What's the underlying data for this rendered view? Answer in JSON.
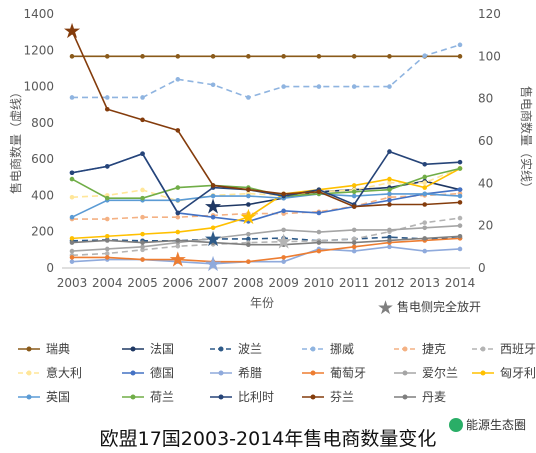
{
  "caption": "欧盟17国2003-2014年售电商数量变化",
  "watermark": "能源生态圈",
  "chart_data": {
    "type": "line",
    "x": [
      2003,
      2004,
      2005,
      2006,
      2007,
      2008,
      2009,
      2010,
      2011,
      2012,
      2013,
      2014
    ],
    "xlabel": "年份",
    "ylabel_left": "售电商数量（虚线）",
    "ylabel_right": "售电商数量（实线）",
    "ylim_left": [
      0,
      1400
    ],
    "yticks_left": [
      0,
      200,
      400,
      600,
      800,
      1000,
      1200,
      1400
    ],
    "ylim_right": [
      0,
      120
    ],
    "yticks_right": [
      0,
      20,
      40,
      60,
      80,
      100,
      120
    ],
    "grid": false,
    "legend_position": "bottom",
    "full_opening_label": "售电侧完全放开",
    "series": [
      {
        "name": "瑞典",
        "axis": "right",
        "dash": false,
        "color": "#8a5a1a",
        "values": [
          100,
          100,
          100,
          100,
          100,
          100,
          100,
          100,
          100,
          100,
          100,
          100
        ],
        "star_year": null
      },
      {
        "name": "法国",
        "axis": "right",
        "dash": false,
        "color": "#1f3864",
        "values": [
          null,
          null,
          null,
          null,
          29,
          30,
          33,
          36,
          37,
          38,
          41,
          37
        ],
        "star_year": 2007
      },
      {
        "name": "波兰",
        "axis": "left",
        "dash": true,
        "color": "#2e5a88",
        "values": [
          150,
          155,
          150,
          150,
          160,
          160,
          165,
          150,
          160,
          170,
          160,
          165
        ],
        "star_year": 2007
      },
      {
        "name": "挪威",
        "axis": "left",
        "dash": true,
        "color": "#8fb4e0",
        "values": [
          940,
          940,
          940,
          1040,
          1010,
          940,
          1000,
          1000,
          1000,
          1000,
          1170,
          1230
        ],
        "star_year": null
      },
      {
        "name": "捷克",
        "axis": "left",
        "dash": true,
        "color": "#f4b183",
        "values": [
          270,
          270,
          280,
          280,
          290,
          300,
          300,
          310,
          340,
          390,
          400,
          410
        ],
        "star_year": null
      },
      {
        "name": "西班牙",
        "axis": "left",
        "dash": true,
        "color": "#b4b4b4",
        "values": [
          70,
          80,
          100,
          120,
          130,
          140,
          145,
          150,
          160,
          200,
          250,
          275
        ],
        "star_year": 2009
      },
      {
        "name": "意大利",
        "axis": "left",
        "dash": true,
        "color": "#ffe699",
        "values": [
          390,
          400,
          430,
          370,
          400,
          410,
          400,
          420,
          430,
          470,
          470,
          550
        ],
        "star_year": null
      },
      {
        "name": "德国",
        "axis": "right",
        "dash": false,
        "color": "#4472c4",
        "values": [
          45,
          48,
          54,
          26,
          24,
          22,
          27,
          26,
          29,
          32,
          35,
          37
        ],
        "star_year": null
      },
      {
        "name": "希腊",
        "axis": "right",
        "dash": false,
        "color": "#8faadc",
        "values": [
          3,
          4,
          4,
          3,
          2,
          3,
          3,
          9,
          8,
          10,
          8,
          9
        ],
        "star_year": 2007
      },
      {
        "name": "葡萄牙",
        "axis": "right",
        "dash": false,
        "color": "#ed7d31",
        "values": [
          5,
          5,
          4,
          4,
          3,
          3,
          5,
          8,
          10,
          12,
          13,
          14
        ],
        "star_year": 2006
      },
      {
        "name": "爱尔兰",
        "axis": "right",
        "dash": false,
        "color": "#a5a5a5",
        "values": [
          8,
          9,
          10,
          12,
          14,
          16,
          18,
          17,
          18,
          18,
          19,
          20
        ],
        "star_year": null
      },
      {
        "name": "匈牙利",
        "axis": "right",
        "dash": false,
        "color": "#ffc000",
        "values": [
          14,
          15,
          16,
          17,
          19,
          24,
          35,
          37,
          39,
          42,
          38,
          47
        ],
        "star_year": 2008
      },
      {
        "name": "英国",
        "axis": "right",
        "dash": false,
        "color": "#5b9bd5",
        "values": [
          24,
          32,
          32,
          32,
          34,
          34,
          33,
          35,
          34,
          35,
          35,
          34
        ],
        "star_year": null
      },
      {
        "name": "荷兰",
        "axis": "right",
        "dash": false,
        "color": "#70ad47",
        "values": [
          42,
          33,
          33,
          38,
          39,
          38,
          34,
          35,
          36,
          37,
          43,
          47
        ],
        "star_year": null
      },
      {
        "name": "比利时",
        "axis": "right",
        "dash": false,
        "color": "#264478",
        "values": [
          45,
          48,
          54,
          26,
          38,
          37,
          34,
          37,
          30,
          55,
          49,
          50
        ],
        "star_year": null
      },
      {
        "name": "芬兰",
        "axis": "right",
        "dash": false,
        "color": "#843c0c",
        "values": [
          112,
          75,
          70,
          65,
          39,
          37,
          35,
          36,
          29,
          30,
          30,
          31
        ],
        "star_year": 2003
      },
      {
        "name": "丹麦",
        "axis": "right",
        "dash": false,
        "color": "#7f7f7f",
        "values": [
          12,
          13,
          12,
          13,
          12,
          11,
          11,
          12,
          12,
          13,
          14,
          15
        ],
        "star_year": null
      }
    ]
  }
}
